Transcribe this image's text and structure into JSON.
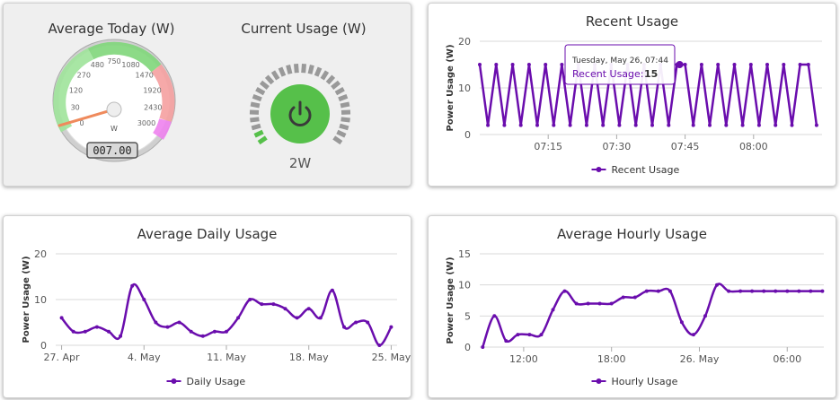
{
  "colors": {
    "series": "#6a0dad",
    "grid": "#d8d8d8",
    "power_green": "#56c04a",
    "dial_ring": "#999999"
  },
  "gauges": {
    "average": {
      "title": "Average Today (W)",
      "unit": "W",
      "ticks": [
        "0",
        "30",
        "120",
        "270",
        "480",
        "750",
        "1080",
        "1470",
        "1920",
        "2430",
        "3000"
      ],
      "value": 7,
      "readout": "007.00"
    },
    "current": {
      "title": "Current Usage (W)",
      "value_label": "2W",
      "icon": "power-icon",
      "level_fraction": 0.0667
    }
  },
  "chart_data": [
    {
      "type": "line",
      "id": "recent",
      "title": "Recent Usage",
      "ylabel": "Power Usage (W)",
      "ylim": [
        0,
        20
      ],
      "yticks": [
        0,
        10,
        20
      ],
      "xticks": [
        "07:15",
        "07:30",
        "07:45",
        "08:00"
      ],
      "xtick_pos": [
        7.25,
        7.5,
        7.75,
        8.0
      ],
      "xlim": [
        7.0,
        8.25
      ],
      "series": [
        {
          "name": "Recent Usage",
          "x": [
            7.0,
            7.03,
            7.06,
            7.09,
            7.12,
            7.15,
            7.18,
            7.21,
            7.24,
            7.27,
            7.3,
            7.33,
            7.36,
            7.39,
            7.42,
            7.45,
            7.48,
            7.51,
            7.54,
            7.57,
            7.6,
            7.63,
            7.66,
            7.69,
            7.72,
            7.75,
            7.78,
            7.81,
            7.84,
            7.87,
            7.9,
            7.93,
            7.96,
            7.99,
            8.02,
            8.05,
            8.08,
            8.11,
            8.14,
            8.17,
            8.2,
            8.23
          ],
          "values": [
            15,
            2,
            15,
            2,
            15,
            2,
            15,
            2,
            15,
            2,
            15,
            2,
            15,
            2,
            15,
            2,
            15,
            2,
            15,
            2,
            15,
            2,
            15,
            2,
            15,
            15,
            2,
            15,
            2,
            15,
            2,
            15,
            2,
            15,
            2,
            15,
            2,
            15,
            2,
            15,
            15,
            2
          ]
        }
      ],
      "tooltip": {
        "date": "Tuesday, May 26, 07:44",
        "label": "Recent Usage:",
        "value": "15"
      },
      "legend": "bottom"
    },
    {
      "type": "line",
      "id": "daily",
      "title": "Average Daily Usage",
      "ylabel": "Power Usage (W)",
      "ylim": [
        0,
        20
      ],
      "yticks": [
        0,
        10,
        20
      ],
      "xticks": [
        "27. Apr",
        "4. May",
        "11. May",
        "18. May",
        "25. May"
      ],
      "xtick_pos": [
        0,
        7,
        14,
        21,
        28
      ],
      "xlim": [
        -0.5,
        28.5
      ],
      "series": [
        {
          "name": "Daily Usage",
          "x": [
            0,
            1,
            2,
            3,
            4,
            5,
            6,
            7,
            8,
            9,
            10,
            11,
            12,
            13,
            14,
            15,
            16,
            17,
            18,
            19,
            20,
            21,
            22,
            23,
            24,
            25,
            26,
            27,
            28
          ],
          "values": [
            6,
            3,
            3,
            4,
            3,
            2,
            13,
            10,
            5,
            4,
            5,
            3,
            2,
            3,
            3,
            6,
            10,
            9,
            9,
            8,
            6,
            8,
            6,
            12,
            4,
            5,
            5,
            0,
            4
          ]
        }
      ],
      "legend": "bottom"
    },
    {
      "type": "line",
      "id": "hourly",
      "title": "Average Hourly Usage",
      "ylabel": "Power Usage (W)",
      "ylim": [
        0,
        15
      ],
      "yticks": [
        0,
        5,
        10,
        15
      ],
      "xticks": [
        "12:00",
        "18:00",
        "26. May",
        "06:00"
      ],
      "xtick_pos": [
        0,
        6,
        12,
        18
      ],
      "xlim": [
        -3.0,
        20.5
      ],
      "series": [
        {
          "name": "Hourly Usage",
          "x": [
            -2.8,
            -2.0,
            -1.2,
            -0.4,
            0.4,
            1.2,
            2.0,
            2.8,
            3.6,
            4.4,
            5.2,
            6.0,
            6.8,
            7.6,
            8.4,
            9.2,
            10.0,
            10.8,
            11.6,
            12.4,
            13.2,
            14.0,
            14.8,
            15.6,
            16.4,
            17.2,
            18.0,
            18.8,
            19.6,
            20.4
          ],
          "values": [
            0,
            5,
            1,
            2,
            2,
            2,
            6,
            9,
            7,
            7,
            7,
            7,
            8,
            8,
            9,
            9,
            9,
            4,
            2,
            5,
            10,
            9,
            9,
            9,
            9,
            9,
            9,
            9,
            9,
            9
          ]
        }
      ],
      "legend": "bottom"
    }
  ]
}
